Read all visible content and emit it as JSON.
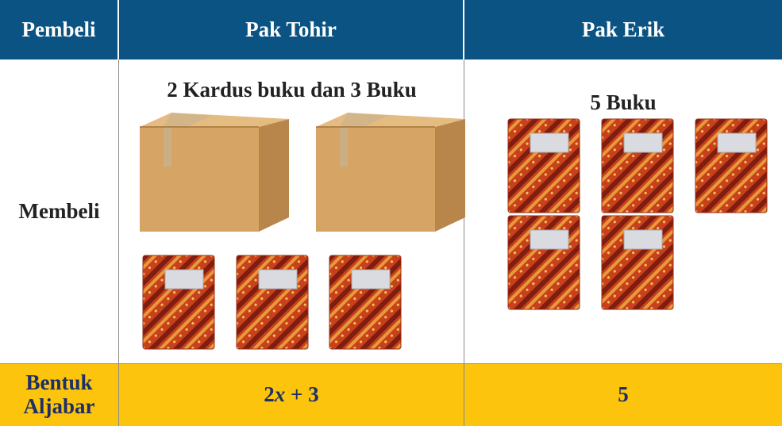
{
  "table": {
    "header": [
      "Pembeli",
      "Pak Tohir",
      "Pak Erik"
    ],
    "rows": [
      [
        "Membeli",
        "2 Kardus buku dan 3 Buku",
        "5 Buku"
      ],
      [
        "Bentuk Aljabar",
        [
          "2",
          "x",
          " + 3"
        ],
        "5"
      ]
    ]
  }
}
